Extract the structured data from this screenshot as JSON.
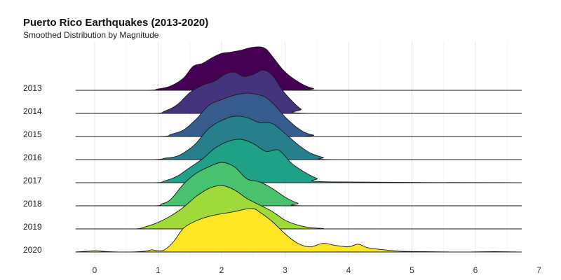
{
  "chart_data": {
    "type": "area",
    "title": "Puerto Rico Earthquakes (2013-2020)",
    "subtitle": "Smoothed Distribution by Magnitude",
    "xlabel": "",
    "ylabel": "",
    "xlim": [
      -0.3,
      7
    ],
    "x_ticks": [
      0,
      1,
      2,
      3,
      4,
      5,
      6,
      7
    ],
    "grid": true,
    "legend": "none",
    "series": [
      {
        "name": "2013",
        "color": "#440154",
        "x": [
          -0.3,
          0.8,
          1.0,
          1.2,
          1.4,
          1.55,
          1.7,
          1.85,
          2.0,
          2.15,
          2.3,
          2.45,
          2.6,
          2.7,
          2.8,
          2.95,
          3.1,
          3.3,
          3.45,
          3.6,
          6.7
        ],
        "y": [
          0,
          0,
          0.03,
          0.1,
          0.28,
          0.55,
          0.62,
          0.75,
          0.85,
          0.88,
          0.92,
          0.98,
          1.0,
          0.95,
          0.78,
          0.5,
          0.3,
          0.12,
          0.04,
          0,
          0
        ]
      },
      {
        "name": "2014",
        "color": "#46337E",
        "x": [
          -0.3,
          0.9,
          1.1,
          1.3,
          1.5,
          1.7,
          1.9,
          2.05,
          2.2,
          2.35,
          2.5,
          2.65,
          2.8,
          2.95,
          3.1,
          3.25,
          3.4,
          6.7
        ],
        "y": [
          0,
          0,
          0.05,
          0.2,
          0.48,
          0.65,
          0.75,
          0.9,
          0.95,
          0.85,
          0.9,
          1.0,
          0.88,
          0.55,
          0.3,
          0.1,
          0,
          0
        ]
      },
      {
        "name": "2015",
        "color": "#365C8D",
        "x": [
          -0.3,
          1.0,
          1.2,
          1.4,
          1.6,
          1.8,
          2.0,
          2.2,
          2.4,
          2.55,
          2.7,
          2.85,
          3.0,
          3.15,
          3.3,
          3.45,
          3.6,
          6.7
        ],
        "y": [
          0,
          0,
          0.05,
          0.15,
          0.4,
          0.72,
          0.85,
          0.95,
          1.0,
          0.97,
          0.9,
          0.7,
          0.45,
          0.25,
          0.1,
          0.03,
          0,
          0
        ]
      },
      {
        "name": "2016",
        "color": "#277F8E",
        "x": [
          -0.3,
          0.9,
          1.1,
          1.3,
          1.45,
          1.6,
          1.8,
          2.0,
          2.2,
          2.4,
          2.6,
          2.8,
          3.0,
          3.2,
          3.4,
          3.6,
          3.8,
          6.7
        ],
        "y": [
          0,
          0,
          0.03,
          0.08,
          0.2,
          0.38,
          0.72,
          0.9,
          1.0,
          0.97,
          0.85,
          0.83,
          0.6,
          0.35,
          0.15,
          0.05,
          0,
          0
        ]
      },
      {
        "name": "2017",
        "color": "#1FA187",
        "x": [
          -0.3,
          0.9,
          1.1,
          1.3,
          1.5,
          1.7,
          1.9,
          2.1,
          2.3,
          2.5,
          2.7,
          2.9,
          3.1,
          3.3,
          3.5,
          3.7,
          6.7
        ],
        "y": [
          0,
          0,
          0.04,
          0.15,
          0.35,
          0.55,
          0.8,
          0.95,
          1.0,
          0.9,
          0.72,
          0.75,
          0.45,
          0.25,
          0.1,
          0.02,
          0
        ]
      },
      {
        "name": "2018",
        "color": "#4AC16D",
        "x": [
          -0.3,
          0.9,
          1.05,
          1.2,
          1.4,
          1.6,
          1.8,
          2.0,
          2.2,
          2.4,
          2.6,
          2.8,
          3.0,
          3.2,
          3.4,
          6.7
        ],
        "y": [
          0,
          0,
          0.04,
          0.15,
          0.5,
          0.75,
          0.9,
          1.0,
          0.9,
          0.62,
          0.55,
          0.4,
          0.2,
          0.06,
          0,
          0
        ]
      },
      {
        "name": "2019",
        "color": "#A0DA39",
        "x": [
          -0.3,
          0.6,
          0.8,
          1.0,
          1.2,
          1.4,
          1.6,
          1.8,
          2.0,
          2.2,
          2.4,
          2.6,
          2.8,
          3.0,
          3.2,
          3.4,
          3.6,
          3.8,
          6.7
        ],
        "y": [
          0,
          0,
          0.05,
          0.15,
          0.3,
          0.5,
          0.75,
          0.93,
          1.0,
          0.9,
          0.7,
          0.55,
          0.4,
          0.2,
          0.09,
          0.03,
          0.01,
          0,
          0
        ]
      },
      {
        "name": "2020",
        "color": "#FDE725",
        "x": [
          -0.3,
          -0.1,
          0.0,
          0.2,
          0.5,
          0.8,
          0.9,
          1.0,
          1.1,
          1.25,
          1.4,
          1.6,
          1.8,
          2.0,
          2.2,
          2.35,
          2.5,
          2.6,
          2.8,
          3.0,
          3.2,
          3.4,
          3.6,
          3.8,
          4.0,
          4.15,
          4.3,
          4.5,
          4.8,
          5.2,
          5.8,
          6.3,
          6.7
        ],
        "y": [
          0,
          0.02,
          0.03,
          0.01,
          0,
          0.02,
          0.05,
          0.03,
          0.05,
          0.25,
          0.55,
          0.72,
          0.82,
          0.88,
          0.93,
          0.98,
          1.0,
          0.92,
          0.7,
          0.42,
          0.2,
          0.12,
          0.2,
          0.15,
          0.12,
          0.18,
          0.1,
          0.06,
          0.02,
          0.01,
          0,
          0.01,
          0
        ]
      }
    ]
  }
}
